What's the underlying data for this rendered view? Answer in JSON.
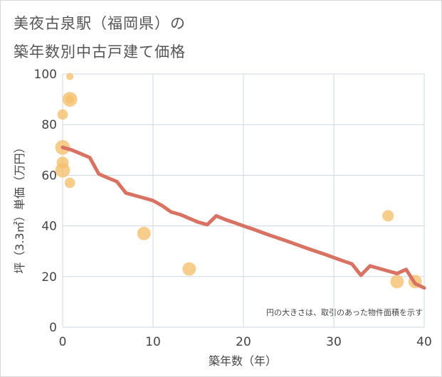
{
  "chart_data": {
    "type": "scatter",
    "title_lines": [
      "美夜古泉駅（福岡県）の",
      "築年数別中古戸建て価格"
    ],
    "xlabel": "築年数（年）",
    "ylabel": "坪（3.3㎡）単価（万円）",
    "xlim": [
      0,
      40
    ],
    "ylim": [
      0,
      100
    ],
    "xticks": [
      0,
      10,
      20,
      30,
      40
    ],
    "yticks": [
      0,
      20,
      40,
      60,
      80,
      100
    ],
    "grid": true,
    "note": "円の大きさは、取引のあった物件面積を示す",
    "colors": {
      "bubble": "#f5c06e",
      "trend": "#d87363",
      "grid": "#cfd8e0"
    },
    "bubbles": [
      {
        "x": 0.0,
        "y": 62,
        "size": 3
      },
      {
        "x": 0.0,
        "y": 71,
        "size": 3
      },
      {
        "x": 0.0,
        "y": 65,
        "size": 2
      },
      {
        "x": 0.0,
        "y": 84,
        "size": 1.5
      },
      {
        "x": 0.8,
        "y": 99,
        "size": 0.7
      },
      {
        "x": 0.8,
        "y": 90,
        "size": 3
      },
      {
        "x": 0.8,
        "y": 90,
        "size": 1
      },
      {
        "x": 0.8,
        "y": 57,
        "size": 1.5
      },
      {
        "x": 9,
        "y": 37,
        "size": 2.5
      },
      {
        "x": 14,
        "y": 23,
        "size": 2.5
      },
      {
        "x": 36,
        "y": 44,
        "size": 1.8
      },
      {
        "x": 37,
        "y": 18,
        "size": 2.5
      },
      {
        "x": 39,
        "y": 18,
        "size": 2.5
      }
    ],
    "trend": {
      "x": [
        0,
        1,
        2,
        3,
        4,
        5,
        6,
        7,
        8,
        9,
        10,
        11,
        12,
        13,
        14,
        15,
        16,
        17,
        18,
        19,
        20,
        21,
        22,
        23,
        24,
        25,
        26,
        27,
        28,
        29,
        30,
        31,
        32,
        33,
        34,
        35,
        36,
        37,
        38,
        39,
        40
      ],
      "y": [
        71,
        70,
        68.5,
        67,
        60.5,
        59,
        57.5,
        53,
        52,
        51,
        50,
        48,
        45.5,
        44.5,
        43,
        41.5,
        40.5,
        44,
        42.5,
        41.3,
        40,
        38.8,
        37.5,
        36.2,
        35,
        33.8,
        32.5,
        31.2,
        30,
        28.8,
        27.5,
        26.2,
        25,
        20.5,
        24.2,
        23.2,
        22.2,
        21.2,
        22.8,
        17.2,
        15.5
      ]
    }
  }
}
